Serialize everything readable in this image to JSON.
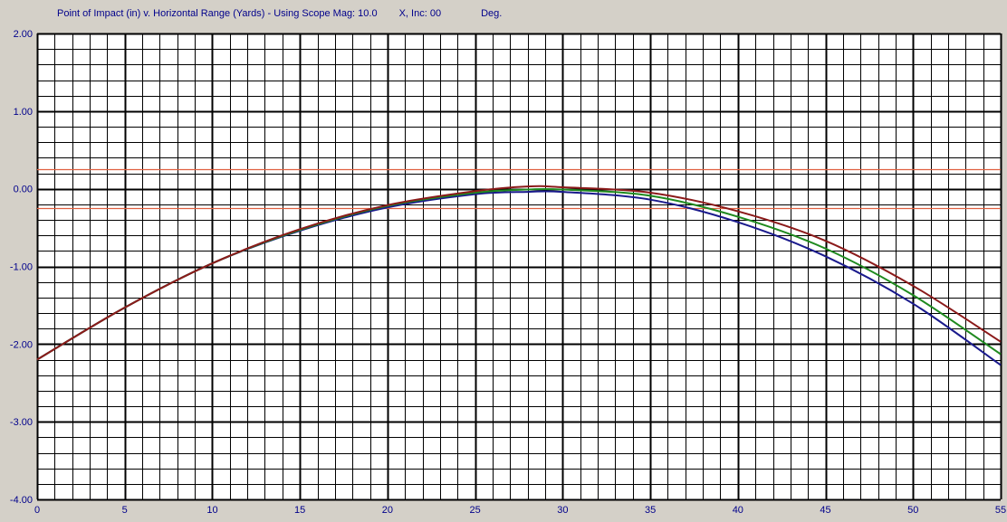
{
  "header": {
    "title_main": "Point of Impact (in) v. Horizontal Range (Yards) - Using Scope Mag: 10.0",
    "title_inc": "X,  Inc: 00",
    "title_unit": "Deg."
  },
  "chart_data": {
    "type": "line",
    "title": "Point of Impact (in) v. Horizontal Range (Yards) - Using Scope Mag: 10.0      X,  Inc: 00          Deg.",
    "xlabel": "",
    "ylabel": "",
    "xlim": [
      0,
      55
    ],
    "ylim": [
      -4,
      2
    ],
    "x_ticks": [
      0,
      5,
      10,
      15,
      20,
      25,
      30,
      35,
      40,
      45,
      50,
      55
    ],
    "x_tick_labels": [
      "0",
      "5",
      "10",
      "15",
      "20",
      "25",
      "30",
      "35",
      "40",
      "45",
      "50",
      "55"
    ],
    "y_ticks": [
      2,
      1,
      0,
      -1,
      -2,
      -3,
      -4
    ],
    "y_tick_labels": [
      "2.00",
      "1.00",
      "0.00",
      "-1.00",
      "-2.00",
      "-3.00",
      "-4.00"
    ],
    "grid": true,
    "minor_x_step": 1,
    "minor_y_step": 0.2,
    "reference_lines": [
      {
        "y": 0.25,
        "color": "#e06040"
      },
      {
        "y": -0.25,
        "color": "#e06040"
      }
    ],
    "x": [
      0,
      5,
      10,
      15,
      20,
      25,
      28,
      30,
      35,
      40,
      45,
      50,
      55
    ],
    "series": [
      {
        "color": "#1a1a8c",
        "values": [
          -2.2,
          -1.53,
          -0.96,
          -0.54,
          -0.24,
          -0.07,
          -0.04,
          -0.04,
          -0.14,
          -0.43,
          -0.87,
          -1.48,
          -2.27
        ]
      },
      {
        "color": "#1f8a1f",
        "values": [
          -2.2,
          -1.53,
          -0.96,
          -0.53,
          -0.22,
          -0.05,
          -0.01,
          -0.01,
          -0.09,
          -0.36,
          -0.77,
          -1.37,
          -2.13
        ]
      },
      {
        "color": "#8b1a1a",
        "values": [
          -2.2,
          -1.53,
          -0.96,
          -0.52,
          -0.21,
          -0.03,
          0.03,
          0.02,
          -0.05,
          -0.29,
          -0.67,
          -1.25,
          -1.97
        ]
      }
    ],
    "colors": {
      "background": "#d4d0c8",
      "plot_background": "#ffffff",
      "grid_minor": "#000000",
      "grid_major": "#000000",
      "tick_label": "#00008b"
    }
  }
}
